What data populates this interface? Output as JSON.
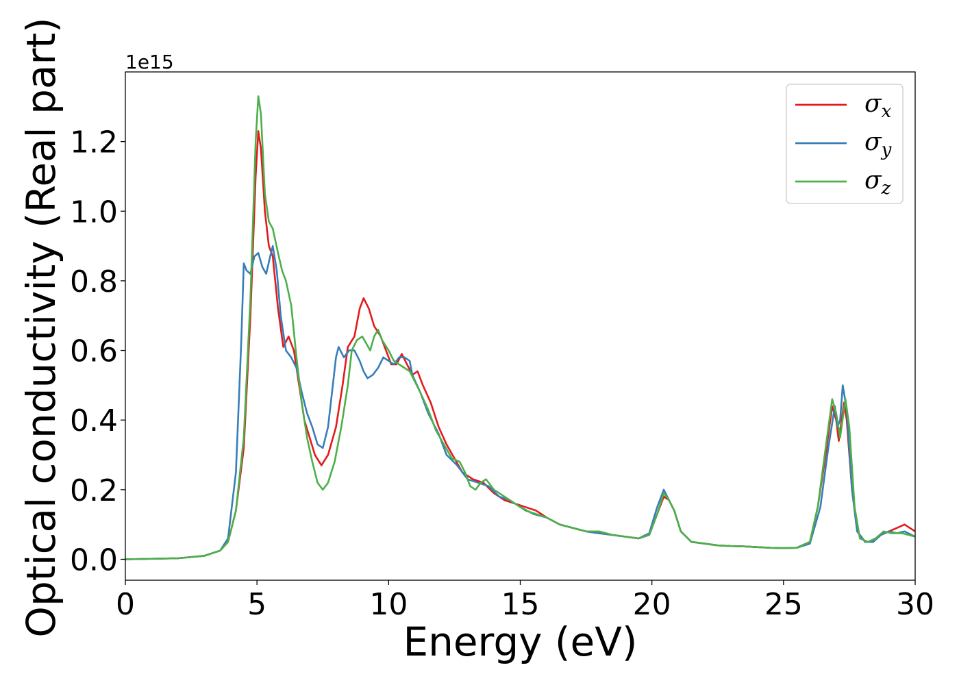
{
  "chart_data": {
    "type": "line",
    "xlabel": "Energy (eV)",
    "ylabel": "Optical conductivity (Real part)",
    "y_offset_label": "1e15",
    "xlim": [
      0,
      30
    ],
    "ylim": [
      -0.06,
      1.4
    ],
    "x_ticks": [
      0,
      5,
      10,
      15,
      20,
      25,
      30
    ],
    "x_tick_labels": [
      "0",
      "5",
      "10",
      "15",
      "20",
      "25",
      "30"
    ],
    "y_ticks": [
      0.0,
      0.2,
      0.4,
      0.6,
      0.8,
      1.0,
      1.2
    ],
    "y_tick_labels": [
      "0.0",
      "0.2",
      "0.4",
      "0.6",
      "0.8",
      "1.0",
      "1.2"
    ],
    "grid": false,
    "legend_position": "top-right",
    "series": [
      {
        "name": "σx",
        "symbol": "σ",
        "subscript": "x",
        "color": "#e41a1c",
        "points": [
          [
            0,
            0
          ],
          [
            2,
            0.003
          ],
          [
            3,
            0.01
          ],
          [
            3.6,
            0.025
          ],
          [
            3.9,
            0.05
          ],
          [
            4.2,
            0.14
          ],
          [
            4.5,
            0.32
          ],
          [
            4.75,
            0.7
          ],
          [
            4.95,
            1.1
          ],
          [
            5.05,
            1.23
          ],
          [
            5.15,
            1.18
          ],
          [
            5.3,
            1.0
          ],
          [
            5.45,
            0.9
          ],
          [
            5.6,
            0.87
          ],
          [
            5.8,
            0.72
          ],
          [
            6.0,
            0.61
          ],
          [
            6.2,
            0.64
          ],
          [
            6.4,
            0.6
          ],
          [
            6.6,
            0.5
          ],
          [
            6.8,
            0.4
          ],
          [
            7.0,
            0.35
          ],
          [
            7.2,
            0.3
          ],
          [
            7.45,
            0.27
          ],
          [
            7.7,
            0.3
          ],
          [
            8.0,
            0.38
          ],
          [
            8.25,
            0.5
          ],
          [
            8.45,
            0.61
          ],
          [
            8.7,
            0.64
          ],
          [
            8.9,
            0.72
          ],
          [
            9.05,
            0.75
          ],
          [
            9.25,
            0.72
          ],
          [
            9.45,
            0.67
          ],
          [
            9.7,
            0.64
          ],
          [
            9.9,
            0.6
          ],
          [
            10.1,
            0.56
          ],
          [
            10.3,
            0.56
          ],
          [
            10.5,
            0.59
          ],
          [
            10.7,
            0.56
          ],
          [
            10.9,
            0.53
          ],
          [
            11.1,
            0.54
          ],
          [
            11.3,
            0.5
          ],
          [
            11.6,
            0.45
          ],
          [
            11.9,
            0.38
          ],
          [
            12.2,
            0.33
          ],
          [
            12.5,
            0.29
          ],
          [
            12.8,
            0.25
          ],
          [
            13.2,
            0.23
          ],
          [
            13.6,
            0.22
          ],
          [
            14.0,
            0.19
          ],
          [
            14.4,
            0.17
          ],
          [
            14.8,
            0.16
          ],
          [
            15.2,
            0.15
          ],
          [
            15.6,
            0.14
          ],
          [
            16.0,
            0.12
          ],
          [
            16.5,
            0.1
          ],
          [
            17.0,
            0.09
          ],
          [
            17.5,
            0.08
          ],
          [
            18.0,
            0.075
          ],
          [
            18.5,
            0.07
          ],
          [
            19.0,
            0.065
          ],
          [
            19.5,
            0.06
          ],
          [
            19.9,
            0.07
          ],
          [
            20.2,
            0.13
          ],
          [
            20.45,
            0.18
          ],
          [
            20.65,
            0.17
          ],
          [
            20.85,
            0.14
          ],
          [
            21.1,
            0.08
          ],
          [
            21.5,
            0.05
          ],
          [
            22.0,
            0.045
          ],
          [
            22.5,
            0.04
          ],
          [
            23.0,
            0.038
          ],
          [
            23.5,
            0.037
          ],
          [
            24.0,
            0.035
          ],
          [
            24.5,
            0.033
          ],
          [
            25.0,
            0.032
          ],
          [
            25.5,
            0.033
          ],
          [
            26.0,
            0.05
          ],
          [
            26.3,
            0.15
          ],
          [
            26.6,
            0.3
          ],
          [
            26.85,
            0.44
          ],
          [
            27.0,
            0.4
          ],
          [
            27.1,
            0.34
          ],
          [
            27.3,
            0.45
          ],
          [
            27.4,
            0.4
          ],
          [
            27.6,
            0.2
          ],
          [
            27.8,
            0.08
          ],
          [
            28.1,
            0.05
          ],
          [
            28.4,
            0.05
          ],
          [
            28.7,
            0.07
          ],
          [
            29.0,
            0.08
          ],
          [
            29.3,
            0.09
          ],
          [
            29.6,
            0.1
          ],
          [
            30.0,
            0.08
          ]
        ]
      },
      {
        "name": "σy",
        "symbol": "σ",
        "subscript": "y",
        "color": "#377eb8",
        "points": [
          [
            0,
            0
          ],
          [
            2,
            0.003
          ],
          [
            3,
            0.01
          ],
          [
            3.6,
            0.025
          ],
          [
            3.9,
            0.06
          ],
          [
            4.2,
            0.25
          ],
          [
            4.4,
            0.62
          ],
          [
            4.5,
            0.85
          ],
          [
            4.6,
            0.83
          ],
          [
            4.75,
            0.82
          ],
          [
            4.9,
            0.87
          ],
          [
            5.05,
            0.88
          ],
          [
            5.2,
            0.84
          ],
          [
            5.35,
            0.82
          ],
          [
            5.5,
            0.87
          ],
          [
            5.6,
            0.9
          ],
          [
            5.75,
            0.83
          ],
          [
            5.9,
            0.7
          ],
          [
            6.1,
            0.6
          ],
          [
            6.3,
            0.58
          ],
          [
            6.5,
            0.55
          ],
          [
            6.7,
            0.48
          ],
          [
            6.9,
            0.42
          ],
          [
            7.1,
            0.38
          ],
          [
            7.3,
            0.33
          ],
          [
            7.5,
            0.32
          ],
          [
            7.7,
            0.38
          ],
          [
            7.85,
            0.48
          ],
          [
            8.0,
            0.58
          ],
          [
            8.1,
            0.61
          ],
          [
            8.3,
            0.58
          ],
          [
            8.5,
            0.6
          ],
          [
            8.7,
            0.6
          ],
          [
            8.9,
            0.57
          ],
          [
            9.05,
            0.54
          ],
          [
            9.2,
            0.52
          ],
          [
            9.4,
            0.53
          ],
          [
            9.6,
            0.55
          ],
          [
            9.8,
            0.58
          ],
          [
            10.0,
            0.57
          ],
          [
            10.2,
            0.56
          ],
          [
            10.4,
            0.58
          ],
          [
            10.6,
            0.58
          ],
          [
            10.8,
            0.57
          ],
          [
            10.9,
            0.53
          ],
          [
            11.2,
            0.48
          ],
          [
            11.5,
            0.42
          ],
          [
            11.9,
            0.36
          ],
          [
            12.2,
            0.3
          ],
          [
            12.6,
            0.27
          ],
          [
            13.0,
            0.23
          ],
          [
            13.4,
            0.22
          ],
          [
            13.8,
            0.21
          ],
          [
            14.2,
            0.18
          ],
          [
            14.6,
            0.17
          ],
          [
            15.0,
            0.15
          ],
          [
            15.5,
            0.13
          ],
          [
            16.0,
            0.12
          ],
          [
            16.5,
            0.1
          ],
          [
            17.0,
            0.09
          ],
          [
            17.5,
            0.08
          ],
          [
            18.0,
            0.075
          ],
          [
            18.5,
            0.07
          ],
          [
            19.0,
            0.065
          ],
          [
            19.5,
            0.06
          ],
          [
            19.9,
            0.075
          ],
          [
            20.2,
            0.15
          ],
          [
            20.45,
            0.2
          ],
          [
            20.65,
            0.17
          ],
          [
            20.85,
            0.14
          ],
          [
            21.1,
            0.08
          ],
          [
            21.5,
            0.05
          ],
          [
            22.0,
            0.045
          ],
          [
            22.5,
            0.04
          ],
          [
            23.0,
            0.038
          ],
          [
            23.5,
            0.037
          ],
          [
            24.0,
            0.035
          ],
          [
            24.5,
            0.033
          ],
          [
            25.0,
            0.032
          ],
          [
            25.5,
            0.033
          ],
          [
            26.0,
            0.045
          ],
          [
            26.4,
            0.15
          ],
          [
            26.7,
            0.32
          ],
          [
            26.95,
            0.44
          ],
          [
            27.05,
            0.38
          ],
          [
            27.15,
            0.4
          ],
          [
            27.25,
            0.5
          ],
          [
            27.4,
            0.43
          ],
          [
            27.6,
            0.2
          ],
          [
            27.8,
            0.08
          ],
          [
            28.1,
            0.05
          ],
          [
            28.4,
            0.05
          ],
          [
            28.7,
            0.07
          ],
          [
            29.0,
            0.08
          ],
          [
            29.3,
            0.075
          ],
          [
            29.6,
            0.08
          ],
          [
            30.0,
            0.065
          ]
        ]
      },
      {
        "name": "σz",
        "symbol": "σ",
        "subscript": "z",
        "color": "#4daf4a",
        "points": [
          [
            0,
            0
          ],
          [
            2,
            0.003
          ],
          [
            3,
            0.01
          ],
          [
            3.6,
            0.025
          ],
          [
            3.9,
            0.05
          ],
          [
            4.2,
            0.14
          ],
          [
            4.5,
            0.35
          ],
          [
            4.75,
            0.75
          ],
          [
            4.95,
            1.2
          ],
          [
            5.05,
            1.33
          ],
          [
            5.15,
            1.28
          ],
          [
            5.3,
            1.05
          ],
          [
            5.45,
            0.97
          ],
          [
            5.6,
            0.95
          ],
          [
            5.8,
            0.88
          ],
          [
            5.95,
            0.83
          ],
          [
            6.1,
            0.8
          ],
          [
            6.3,
            0.73
          ],
          [
            6.5,
            0.58
          ],
          [
            6.7,
            0.45
          ],
          [
            6.9,
            0.35
          ],
          [
            7.1,
            0.28
          ],
          [
            7.3,
            0.22
          ],
          [
            7.5,
            0.2
          ],
          [
            7.7,
            0.22
          ],
          [
            7.95,
            0.28
          ],
          [
            8.2,
            0.38
          ],
          [
            8.45,
            0.5
          ],
          [
            8.6,
            0.6
          ],
          [
            8.8,
            0.63
          ],
          [
            9.0,
            0.64
          ],
          [
            9.15,
            0.62
          ],
          [
            9.3,
            0.6
          ],
          [
            9.45,
            0.64
          ],
          [
            9.6,
            0.66
          ],
          [
            9.75,
            0.63
          ],
          [
            10.0,
            0.6
          ],
          [
            10.2,
            0.57
          ],
          [
            10.4,
            0.56
          ],
          [
            10.6,
            0.55
          ],
          [
            10.8,
            0.54
          ],
          [
            11.0,
            0.51
          ],
          [
            11.2,
            0.48
          ],
          [
            11.5,
            0.43
          ],
          [
            11.8,
            0.37
          ],
          [
            12.1,
            0.33
          ],
          [
            12.4,
            0.29
          ],
          [
            12.7,
            0.28
          ],
          [
            12.9,
            0.25
          ],
          [
            13.1,
            0.21
          ],
          [
            13.3,
            0.2
          ],
          [
            13.5,
            0.22
          ],
          [
            13.7,
            0.23
          ],
          [
            14.0,
            0.2
          ],
          [
            14.4,
            0.18
          ],
          [
            14.8,
            0.16
          ],
          [
            15.2,
            0.14
          ],
          [
            15.6,
            0.13
          ],
          [
            16.0,
            0.12
          ],
          [
            16.5,
            0.1
          ],
          [
            17.0,
            0.09
          ],
          [
            17.5,
            0.08
          ],
          [
            18.0,
            0.08
          ],
          [
            18.5,
            0.07
          ],
          [
            19.0,
            0.065
          ],
          [
            19.5,
            0.06
          ],
          [
            19.9,
            0.07
          ],
          [
            20.2,
            0.13
          ],
          [
            20.45,
            0.19
          ],
          [
            20.65,
            0.17
          ],
          [
            20.85,
            0.14
          ],
          [
            21.1,
            0.08
          ],
          [
            21.5,
            0.05
          ],
          [
            22.0,
            0.045
          ],
          [
            22.5,
            0.04
          ],
          [
            23.0,
            0.038
          ],
          [
            23.5,
            0.037
          ],
          [
            24.0,
            0.035
          ],
          [
            24.5,
            0.033
          ],
          [
            25.0,
            0.032
          ],
          [
            25.5,
            0.033
          ],
          [
            26.0,
            0.05
          ],
          [
            26.3,
            0.15
          ],
          [
            26.6,
            0.32
          ],
          [
            26.85,
            0.46
          ],
          [
            27.0,
            0.42
          ],
          [
            27.15,
            0.35
          ],
          [
            27.35,
            0.46
          ],
          [
            27.5,
            0.38
          ],
          [
            27.7,
            0.15
          ],
          [
            27.9,
            0.06
          ],
          [
            28.2,
            0.05
          ],
          [
            28.5,
            0.06
          ],
          [
            28.8,
            0.08
          ],
          [
            29.1,
            0.075
          ],
          [
            29.5,
            0.075
          ],
          [
            30.0,
            0.065
          ]
        ]
      }
    ]
  }
}
